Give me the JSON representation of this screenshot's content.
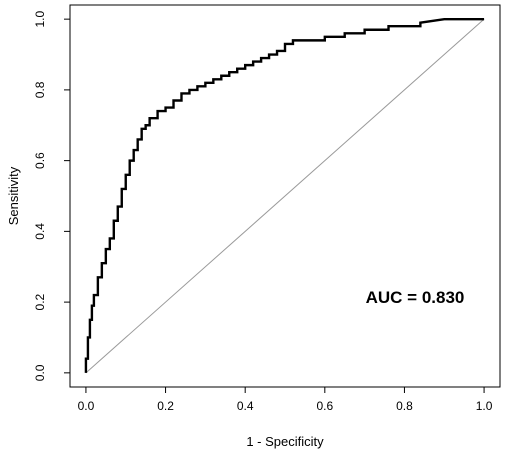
{
  "chart_data": {
    "type": "line",
    "title": "",
    "xlabel": "1 - Specificity",
    "ylabel": "Sensitivity",
    "xlim": [
      -0.04,
      1.04
    ],
    "ylim": [
      -0.04,
      1.04
    ],
    "x_ticks": [
      "0.0",
      "0.2",
      "0.4",
      "0.6",
      "0.8",
      "1.0"
    ],
    "y_ticks": [
      "0.0",
      "0.2",
      "0.4",
      "0.6",
      "0.8",
      "1.0"
    ],
    "grid": false,
    "legend": "none",
    "annotation": "AUC = 0.830",
    "series": [
      {
        "x": [
          0.0,
          0.0,
          0.005,
          0.005,
          0.01,
          0.01,
          0.015,
          0.015,
          0.02,
          0.02,
          0.03,
          0.03,
          0.04,
          0.04,
          0.05,
          0.05,
          0.06,
          0.06,
          0.07,
          0.07,
          0.08,
          0.08,
          0.09,
          0.09,
          0.1,
          0.1,
          0.11,
          0.11,
          0.12,
          0.12,
          0.13,
          0.13,
          0.14,
          0.14,
          0.15,
          0.15,
          0.16,
          0.16,
          0.18,
          0.18,
          0.2,
          0.2,
          0.22,
          0.22,
          0.24,
          0.24,
          0.26,
          0.26,
          0.28,
          0.28,
          0.3,
          0.3,
          0.32,
          0.32,
          0.34,
          0.34,
          0.36,
          0.36,
          0.38,
          0.38,
          0.4,
          0.4,
          0.42,
          0.42,
          0.44,
          0.44,
          0.46,
          0.46,
          0.48,
          0.48,
          0.5,
          0.5,
          0.52,
          0.52,
          0.6,
          0.6,
          0.65,
          0.65,
          0.7,
          0.7,
          0.76,
          0.76,
          0.84,
          0.84,
          0.9,
          1.0
        ],
        "y": [
          0.0,
          0.04,
          0.04,
          0.1,
          0.1,
          0.15,
          0.15,
          0.19,
          0.19,
          0.22,
          0.22,
          0.27,
          0.27,
          0.31,
          0.31,
          0.35,
          0.35,
          0.38,
          0.38,
          0.43,
          0.43,
          0.47,
          0.47,
          0.52,
          0.52,
          0.56,
          0.56,
          0.6,
          0.6,
          0.63,
          0.63,
          0.66,
          0.66,
          0.69,
          0.69,
          0.7,
          0.7,
          0.72,
          0.72,
          0.74,
          0.74,
          0.75,
          0.75,
          0.77,
          0.77,
          0.79,
          0.79,
          0.8,
          0.8,
          0.81,
          0.81,
          0.82,
          0.82,
          0.83,
          0.83,
          0.84,
          0.84,
          0.85,
          0.85,
          0.86,
          0.86,
          0.87,
          0.87,
          0.88,
          0.88,
          0.89,
          0.89,
          0.9,
          0.9,
          0.91,
          0.91,
          0.93,
          0.93,
          0.94,
          0.94,
          0.95,
          0.95,
          0.96,
          0.96,
          0.97,
          0.97,
          0.98,
          0.98,
          0.99,
          1.0,
          1.0
        ]
      }
    ],
    "reference_line": {
      "x": [
        0,
        1
      ],
      "y": [
        0,
        1
      ]
    }
  }
}
